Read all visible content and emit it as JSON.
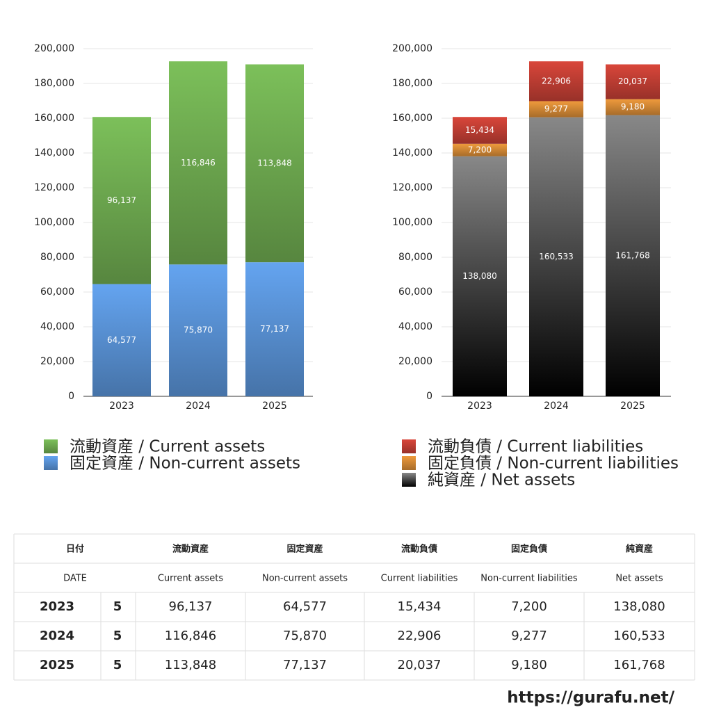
{
  "chart_data": [
    {
      "type": "stacked_bar",
      "categories": [
        "2023",
        "2024",
        "2025"
      ],
      "series": [
        {
          "name": "流動資産 / Current assets",
          "color": "#7cc05a",
          "values": [
            96137,
            116846,
            113848
          ],
          "value_labels": [
            "96,137",
            "116,846",
            "113,848"
          ]
        },
        {
          "name": "固定資産 / Non-current assets",
          "color": "#64a4f0",
          "values": [
            64577,
            75870,
            77137
          ],
          "value_labels": [
            "64,577",
            "75,870",
            "77,137"
          ]
        }
      ],
      "ylim": [
        0,
        200000
      ],
      "yticks": [
        0,
        {
          "value": 20000,
          "label": "20,000"
        },
        {
          "value": 40000,
          "label": "40,000"
        },
        {
          "value": 60000,
          "label": "60,000"
        },
        {
          "value": 80000,
          "label": "80,000"
        },
        {
          "value": 100000,
          "label": "100,000"
        },
        {
          "value": 120000,
          "label": "120,000"
        },
        {
          "value": 140000,
          "label": "140,000"
        },
        {
          "value": 160000,
          "label": "160,000"
        },
        {
          "value": 180000,
          "label": "180,000"
        },
        {
          "value": 200000,
          "label": "200,000"
        }
      ],
      "grid": true
    },
    {
      "type": "stacked_bar",
      "categories": [
        "2023",
        "2024",
        "2025"
      ],
      "series": [
        {
          "name": "流動負債 / Current liabilities",
          "color": "#d9463a",
          "values": [
            15434,
            22906,
            20037
          ],
          "value_labels": [
            "15,434",
            "22,906",
            "20,037"
          ]
        },
        {
          "name": "固定負債 / Non-current liabilities",
          "color": "#ee9a3c",
          "values": [
            7200,
            9277,
            9180
          ],
          "value_labels": [
            "7,200",
            "9,277",
            "9,180"
          ]
        },
        {
          "name": "純資産 / Net assets",
          "color": "#888888",
          "values": [
            138080,
            160533,
            161768
          ],
          "value_labels": [
            "138,080",
            "160,533",
            "161,768"
          ]
        }
      ],
      "ylim": [
        0,
        200000
      ],
      "yticks": [
        0,
        {
          "value": 20000,
          "label": "20,000"
        },
        {
          "value": 40000,
          "label": "40,000"
        },
        {
          "value": 60000,
          "label": "60,000"
        },
        {
          "value": 80000,
          "label": "80,000"
        },
        {
          "value": 100000,
          "label": "100,000"
        },
        {
          "value": 120000,
          "label": "120,000"
        },
        {
          "value": 140000,
          "label": "140,000"
        },
        {
          "value": 160000,
          "label": "160,000"
        },
        {
          "value": 180000,
          "label": "180,000"
        },
        {
          "value": 200000,
          "label": "200,000"
        }
      ],
      "grid": true
    }
  ],
  "table": {
    "header": [
      "日付",
      "流動資産",
      "固定資産",
      "流動負債",
      "固定負債",
      "純資産"
    ],
    "subheader": [
      "DATE",
      "Current assets",
      "Non-current assets",
      "Current liabilities",
      "Non-current liabilities",
      "Net assets"
    ],
    "rows": [
      [
        "2023",
        "5",
        "96,137",
        "64,577",
        "15,434",
        "7,200",
        "138,080"
      ],
      [
        "2024",
        "5",
        "116,846",
        "75,870",
        "22,906",
        "9,277",
        "160,533"
      ],
      [
        "2025",
        "5",
        "113,848",
        "77,137",
        "20,037",
        "9,180",
        "161,768"
      ]
    ]
  },
  "footer": "https://gurafu.net/"
}
